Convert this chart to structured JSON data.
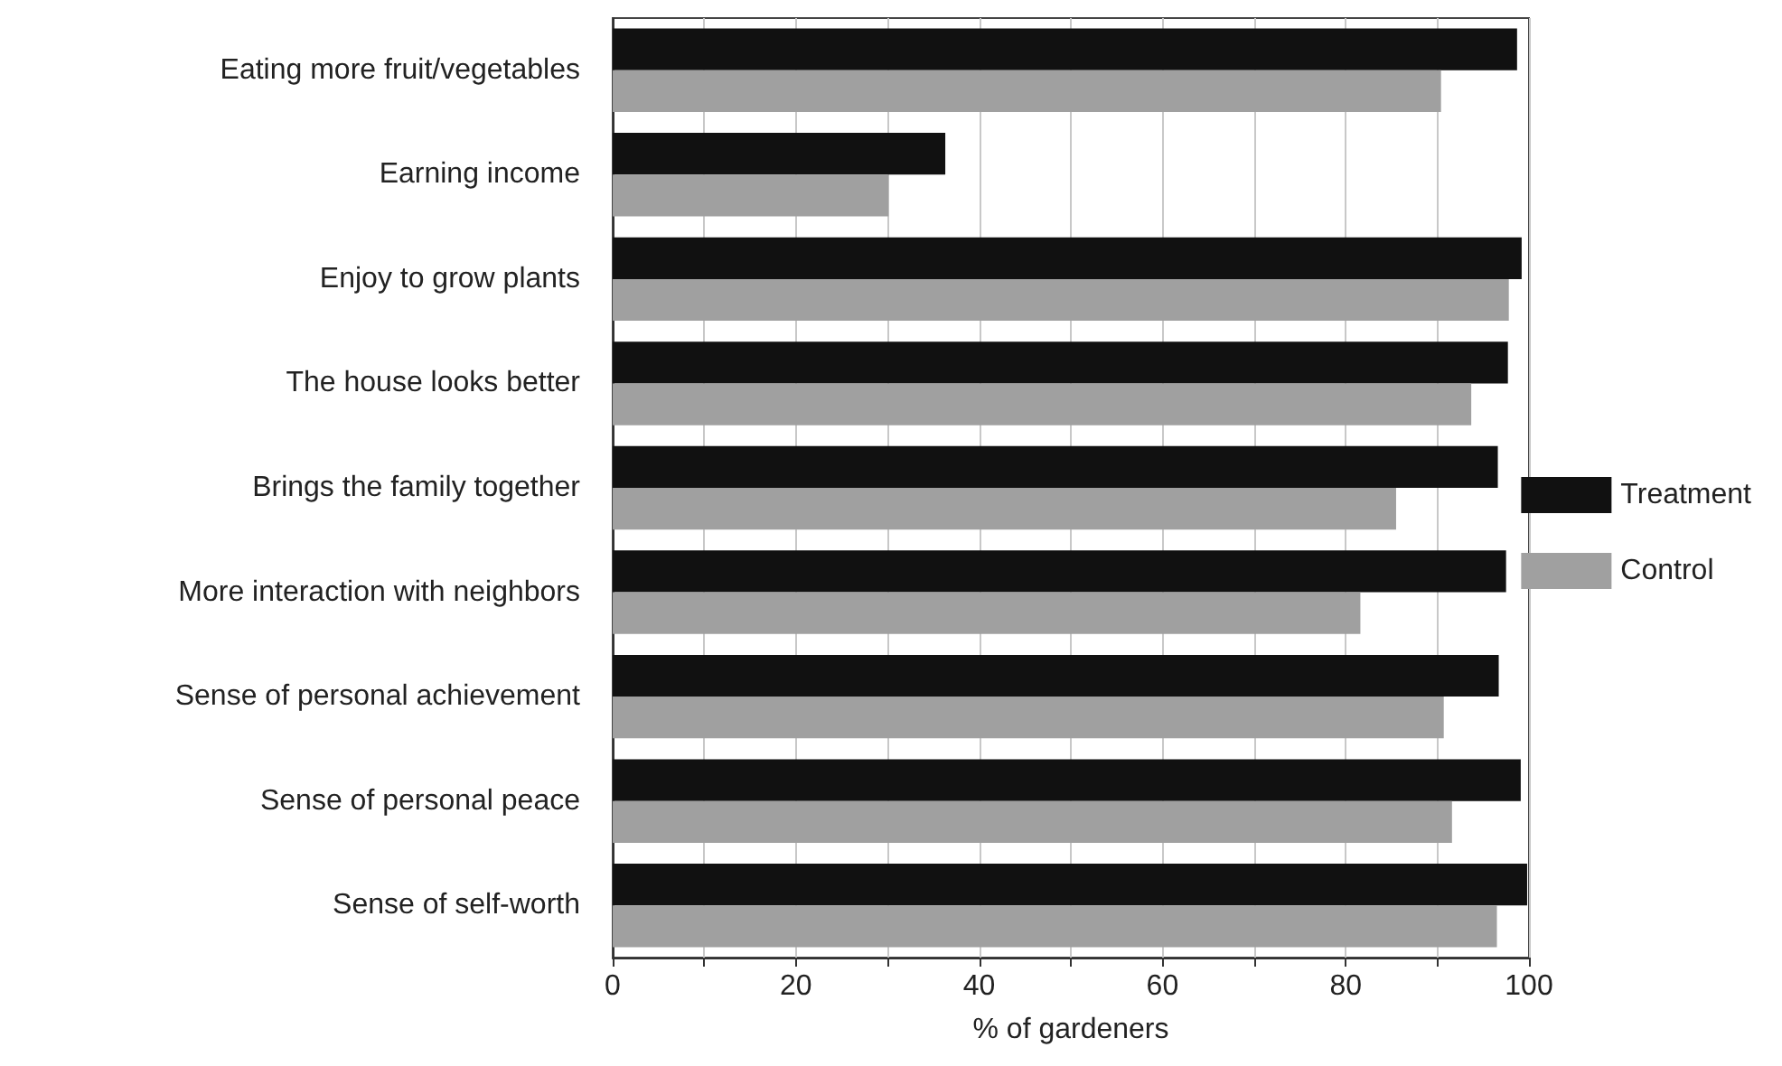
{
  "chart_data": {
    "type": "bar",
    "orientation": "horizontal",
    "xlabel": "% of gardeners",
    "categories": [
      "Eating more fruit/vegetables",
      "Earning income",
      "Enjoy to grow plants",
      "The house looks better",
      "Brings the family together",
      "More interaction with neighbors",
      "Sense of personal achievement",
      "Sense of personal peace",
      "Sense of self-worth"
    ],
    "series": [
      {
        "name": "Treatment",
        "color": "#111111",
        "values": [
          98.7,
          36.3,
          99.2,
          97.7,
          96.6,
          97.5,
          96.7,
          99.1,
          99.8
        ]
      },
      {
        "name": "Control",
        "color": "#a0a0a0",
        "values": [
          90.4,
          30.1,
          97.8,
          93.7,
          85.5,
          81.6,
          90.7,
          91.6,
          96.5
        ]
      }
    ],
    "xlim": [
      0,
      100
    ],
    "xticks": [
      0,
      {
        "value": 10,
        "label": null
      },
      20,
      {
        "value": 30,
        "label": null
      },
      40,
      {
        "value": 50,
        "label": null
      },
      60,
      {
        "value": 70,
        "label": null
      },
      80,
      {
        "value": 90,
        "label": null
      },
      100
    ],
    "grid": "x",
    "legend": "right"
  }
}
